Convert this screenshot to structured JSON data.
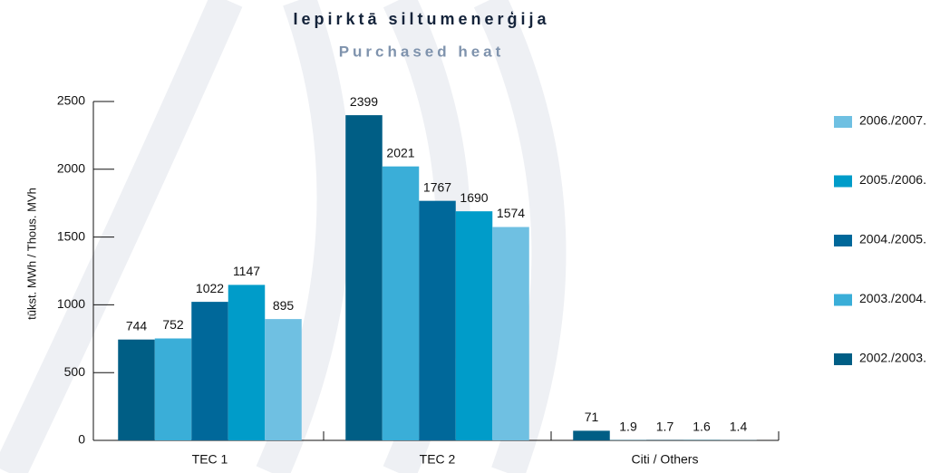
{
  "chart_data": {
    "type": "bar",
    "title": "Iepirktā siltumenerģija",
    "subtitle": "Purchased heat",
    "y_label": "tūkst. MWh / Thous. MVh",
    "categories": [
      "TEC 1",
      "TEC 2",
      "Citi / Others"
    ],
    "series": [
      {
        "name": "2002./2003.",
        "color": "#005e85",
        "values": [
          744,
          2399,
          71
        ]
      },
      {
        "name": "2003./2004.",
        "color": "#3aaed8",
        "values": [
          752,
          2021,
          1.9
        ]
      },
      {
        "name": "2004./2005.",
        "color": "#00689a",
        "values": [
          1022,
          1767,
          1.7
        ]
      },
      {
        "name": "2005./2006.",
        "color": "#009cc9",
        "values": [
          1147,
          1690,
          1.6
        ]
      },
      {
        "name": "2006./2007.",
        "color": "#6fc0e2",
        "values": [
          895,
          1574,
          1.4
        ]
      }
    ],
    "ylim": [
      0,
      2500
    ],
    "yticks": [
      0,
      500,
      1000,
      1500,
      2000,
      2500
    ]
  }
}
